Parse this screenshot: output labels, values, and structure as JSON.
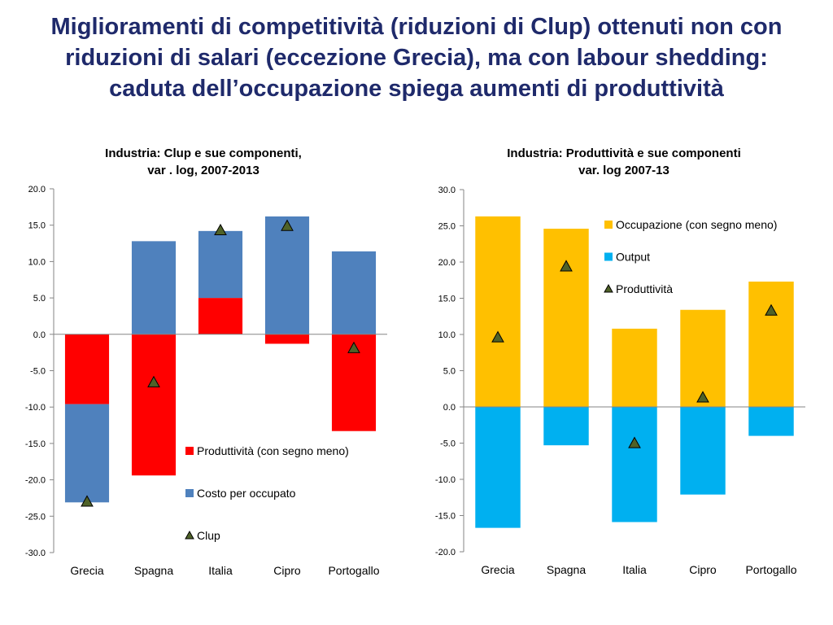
{
  "slide": {
    "title_lines": [
      "Miglioramenti di competitività (riduzioni di Clup) ottenuti non con",
      "riduzioni di salari (eccezione Grecia), ma con labour shedding:",
      "caduta dell’occupazione spiega aumenti di produttività"
    ]
  },
  "colors": {
    "title": "#1f2a6b",
    "produttivita_neg": "#ff0000",
    "costo_occupato": "#4f81bd",
    "occupazione": "#ffc000",
    "output": "#00b0f0",
    "marker_fill": "#4f6228",
    "marker_stroke": "#000000"
  },
  "chart_data": [
    {
      "type": "bar",
      "stacked": true,
      "title_lines": [
        "Industria: Clup e sue componenti,",
        "var . log, 2007-2013"
      ],
      "categories": [
        "Grecia",
        "Spagna",
        "Italia",
        "Cipro",
        "Portogallo"
      ],
      "ylim": [
        -30,
        20
      ],
      "ytick_step": 5,
      "grid": false,
      "legend_position": "bottom-right",
      "series": [
        {
          "name": "Produttività (con segno meno)",
          "kind": "bar",
          "color": "#ff0000",
          "values": [
            -9.6,
            -19.4,
            5.0,
            -1.3,
            -13.3
          ]
        },
        {
          "name": "Costo per occupato",
          "kind": "bar",
          "color": "#4f81bd",
          "values": [
            -13.5,
            12.8,
            9.2,
            16.2,
            11.4
          ]
        },
        {
          "name": "Clup",
          "kind": "marker",
          "color": "#4f6228",
          "values": [
            -23.0,
            -6.6,
            14.3,
            14.9,
            -1.9
          ]
        }
      ]
    },
    {
      "type": "bar",
      "stacked": true,
      "title_lines": [
        "Industria: Produttività e sue componenti",
        "var. log 2007-13"
      ],
      "categories": [
        "Grecia",
        "Spagna",
        "Italia",
        "Cipro",
        "Portogallo"
      ],
      "ylim": [
        -20,
        30
      ],
      "ytick_step": 5,
      "grid": false,
      "legend_position": "top-right",
      "series": [
        {
          "name": "Occupazione (con segno meno)",
          "kind": "bar",
          "color": "#ffc000",
          "values": [
            26.3,
            24.6,
            10.8,
            13.4,
            17.3
          ]
        },
        {
          "name": "Output",
          "kind": "bar",
          "color": "#00b0f0",
          "values": [
            -16.7,
            -5.3,
            -15.9,
            -12.1,
            -4.0
          ]
        },
        {
          "name": "Produttività",
          "kind": "marker",
          "color": "#4f6228",
          "values": [
            9.6,
            19.4,
            -5.0,
            1.3,
            13.3
          ]
        }
      ]
    }
  ]
}
